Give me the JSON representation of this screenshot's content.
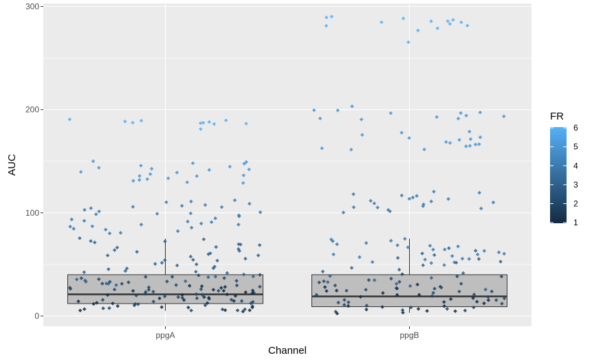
{
  "chart_data": {
    "type": "scatter",
    "subtype": "boxplot with jittered points",
    "title": "",
    "xlabel": "Channel",
    "ylabel": "AUC",
    "categories": [
      "ppgA",
      "ppgB"
    ],
    "ylim": [
      -10,
      303
    ],
    "y_ticks": [
      0,
      100,
      200,
      300
    ],
    "y_tick_labels": [
      "0",
      "100",
      "200",
      "300"
    ],
    "grid": true,
    "colors": {
      "panel": "#EBEBEB",
      "grid": "#FFFFFF",
      "box_fill": "#BEBEBE",
      "box_line": "#333333",
      "low": "#132B43",
      "high": "#56B1F7"
    },
    "boxplots": [
      {
        "category": "ppgA",
        "q1": 12,
        "median": 21,
        "q3": 40,
        "whisker_low": 5,
        "whisker_high": 75
      },
      {
        "category": "ppgB",
        "q1": 9,
        "median": 19,
        "q3": 40,
        "whisker_low": 3,
        "whisker_high": 75
      }
    ],
    "legend": {
      "title": "FR",
      "position": "right",
      "min": 1,
      "max": 6,
      "ticks": [
        1,
        2,
        3,
        4,
        5,
        6
      ],
      "tick_labels": [
        "1",
        "2",
        "3",
        "4",
        "5",
        "6"
      ]
    },
    "points": {
      "ppgA": [
        {
          "fr": 6,
          "y": [
            190,
            189,
            188,
            187,
            186,
            181,
            190,
            189,
            188,
            187,
            186
          ]
        },
        {
          "fr": 5,
          "y": [
            150,
            149,
            148,
            147,
            146,
            145,
            144,
            143,
            142,
            141,
            140,
            139,
            138,
            137,
            136,
            135,
            134,
            133,
            132,
            131,
            130,
            129
          ]
        },
        {
          "fr": 4,
          "y": [
            112,
            111,
            110,
            109,
            108,
            107,
            106,
            105,
            104,
            103,
            102,
            101,
            100,
            99,
            98,
            97,
            96,
            95,
            94,
            93,
            92,
            91,
            90,
            89,
            88,
            87,
            86,
            85,
            84,
            83,
            82,
            81,
            80
          ]
        },
        {
          "fr": 3,
          "y": [
            75,
            74,
            73,
            72,
            71,
            70,
            69,
            68,
            67,
            66,
            65,
            64,
            63,
            62,
            61,
            60,
            59,
            58,
            57,
            56,
            55,
            54,
            53,
            52,
            51,
            50,
            49,
            48,
            47,
            46,
            45,
            44,
            43,
            42,
            41,
            40,
            39,
            38,
            37,
            36,
            35,
            34,
            33,
            32,
            31,
            30
          ]
        },
        {
          "fr": 2,
          "y": [
            40,
            39,
            38,
            37,
            36,
            35,
            34,
            33,
            32,
            31,
            30,
            29,
            28,
            27,
            26,
            25,
            24,
            23,
            22,
            21,
            20,
            19,
            18,
            17,
            16,
            15,
            14,
            13,
            12,
            11,
            10,
            9,
            8,
            7,
            6,
            5,
            38,
            34,
            30,
            26,
            22,
            18,
            14,
            10,
            6,
            32,
            28,
            24,
            20,
            16,
            12,
            8
          ]
        },
        {
          "fr": 1,
          "y": [
            30,
            28,
            26,
            24,
            22,
            20,
            18,
            16,
            14,
            12,
            10,
            8,
            6,
            5,
            29,
            27,
            25,
            23,
            21,
            19,
            17,
            15,
            13,
            11,
            9,
            7,
            5,
            25,
            21,
            17,
            13,
            9,
            6
          ]
        }
      ],
      "ppgB": [
        {
          "fr": 6,
          "y": [
            290,
            288,
            287,
            286,
            285,
            284,
            283,
            282,
            281,
            279,
            277,
            266,
            290,
            285
          ]
        },
        {
          "fr": 5,
          "y": [
            203,
            200,
            199,
            198,
            197,
            196,
            195,
            194,
            193,
            192,
            191,
            190,
            179,
            178,
            175,
            173,
            172,
            171,
            170,
            169,
            168,
            167,
            166,
            165,
            164,
            163,
            162,
            161
          ]
        },
        {
          "fr": 4,
          "y": [
            120,
            119,
            118,
            117,
            116,
            115,
            114,
            113,
            112,
            111,
            110,
            109,
            108,
            107,
            106,
            105,
            104,
            103,
            102,
            101
          ]
        },
        {
          "fr": 4,
          "y": [
            75,
            74,
            73,
            72,
            71,
            70,
            69,
            68,
            67,
            66,
            65,
            64,
            63,
            62,
            61,
            60,
            59,
            58,
            57,
            56,
            55,
            54,
            53,
            52,
            51,
            50
          ]
        },
        {
          "fr": 3,
          "y": [
            65,
            63,
            61,
            59,
            57,
            55,
            53,
            51,
            49,
            47,
            45,
            43,
            41,
            39,
            37,
            35,
            33,
            31,
            29,
            27,
            25
          ]
        },
        {
          "fr": 2,
          "y": [
            40,
            38,
            36,
            34,
            32,
            30,
            28,
            26,
            24,
            22,
            20,
            18,
            16,
            14,
            12,
            10,
            8,
            6,
            4,
            39,
            35,
            31,
            27,
            23,
            19,
            15,
            11,
            7,
            5,
            33,
            29,
            25,
            21,
            17,
            13,
            9
          ]
        },
        {
          "fr": 1,
          "y": [
            30,
            27,
            24,
            21,
            18,
            15,
            12,
            9,
            6,
            4,
            3,
            28,
            25,
            22,
            19,
            16,
            13,
            10,
            7,
            5,
            20,
            14,
            8,
            4
          ]
        }
      ]
    }
  }
}
